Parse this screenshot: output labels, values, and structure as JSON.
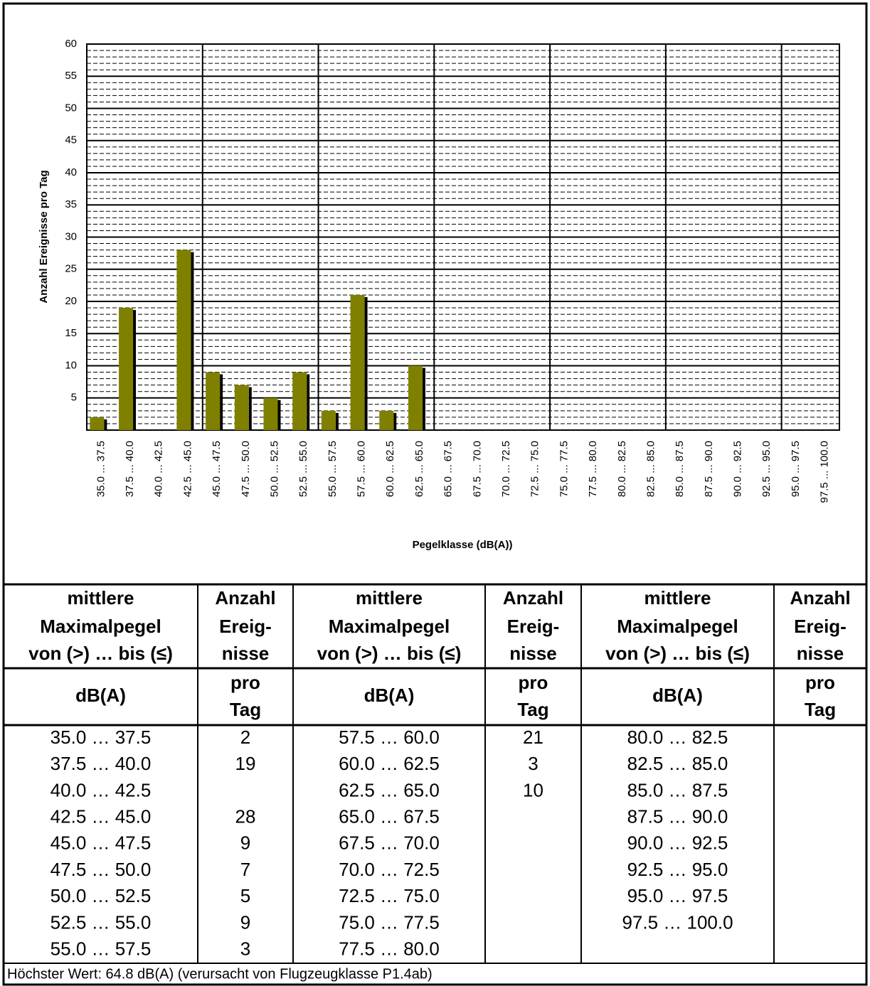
{
  "chart_data": {
    "type": "bar",
    "ylabel": "Anzahl Ereignisse pro Tag",
    "xlabel": "Pegelklasse (dB(A))",
    "categories": [
      "35.0 ... 37.5",
      "37.5 ... 40.0",
      "40.0 ... 42.5",
      "42.5 ... 45.0",
      "45.0 ... 47.5",
      "47.5 ... 50.0",
      "50.0 ... 52.5",
      "52.5 ... 55.0",
      "55.0 ... 57.5",
      "57.5 ... 60.0",
      "60.0 ... 62.5",
      "62.5 ... 65.0",
      "65.0 ... 67.5",
      "67.5 ... 70.0",
      "70.0 ... 72.5",
      "72.5 ... 75.0",
      "75.0 ... 77.5",
      "77.5 ... 80.0",
      "80.0 ... 82.5",
      "82.5 ... 85.0",
      "85.0 ... 87.5",
      "87.5 ... 90.0",
      "90.0 ... 92.5",
      "92.5 ... 95.0",
      "95.0 ... 97.5",
      "97.5 ... 100.0"
    ],
    "values": [
      2,
      19,
      null,
      28,
      9,
      7,
      5,
      9,
      3,
      21,
      3,
      10,
      null,
      null,
      null,
      null,
      null,
      null,
      null,
      null,
      null,
      null,
      null,
      null,
      null,
      null
    ],
    "color": "#808000",
    "ylim": [
      0,
      60
    ],
    "yticks": [
      5,
      10,
      15,
      20,
      25,
      30,
      35,
      40,
      45,
      50,
      55,
      60
    ],
    "grid": true,
    "minor_grid": true
  },
  "table": {
    "header_rows": [
      [
        "mittlere",
        "Anzahl",
        "mittlere",
        "Anzahl",
        "mittlere",
        "Anzahl"
      ],
      [
        "Maximalpegel",
        "Ereig-",
        "Maximalpegel",
        "Ereig-",
        "Maximalpegel",
        "Ereig-"
      ],
      [
        "von (>) … bis (≤)",
        "nisse",
        "von (>) … bis (≤)",
        "nisse",
        "von (>) … bis (≤)",
        "nisse"
      ]
    ],
    "unit_row": [
      [
        "dB(A)"
      ],
      [
        "pro",
        "Tag"
      ],
      [
        "dB(A)"
      ],
      [
        "pro",
        "Tag"
      ],
      [
        "dB(A)"
      ],
      [
        "pro",
        "Tag"
      ]
    ],
    "rows": [
      [
        "35.0 … 37.5",
        2,
        "57.5 … 60.0",
        21,
        "80.0 … 82.5",
        null
      ],
      [
        "37.5 … 40.0",
        19,
        "60.0 … 62.5",
        3,
        "82.5 … 85.0",
        null
      ],
      [
        "40.0 … 42.5",
        null,
        "62.5 … 65.0",
        10,
        "85.0 … 87.5",
        null
      ],
      [
        "42.5 … 45.0",
        28,
        "65.0 … 67.5",
        null,
        "87.5 … 90.0",
        null
      ],
      [
        "45.0 … 47.5",
        9,
        "67.5 … 70.0",
        null,
        "90.0 … 92.5",
        null
      ],
      [
        "47.5 … 50.0",
        7,
        "70.0 … 72.5",
        null,
        "92.5 … 95.0",
        null
      ],
      [
        "50.0 … 52.5",
        5,
        "72.5 … 75.0",
        null,
        "95.0 … 97.5",
        null
      ],
      [
        "52.5 … 55.0",
        9,
        "75.0 … 77.5",
        null,
        "97.5 … 100.0",
        null
      ],
      [
        "55.0 … 57.5",
        3,
        "77.5 … 80.0",
        null,
        null,
        null
      ]
    ],
    "footer": "Höchster Wert: 64.8 dB(A) (verursacht von Flugzeugklasse P1.4ab)"
  }
}
